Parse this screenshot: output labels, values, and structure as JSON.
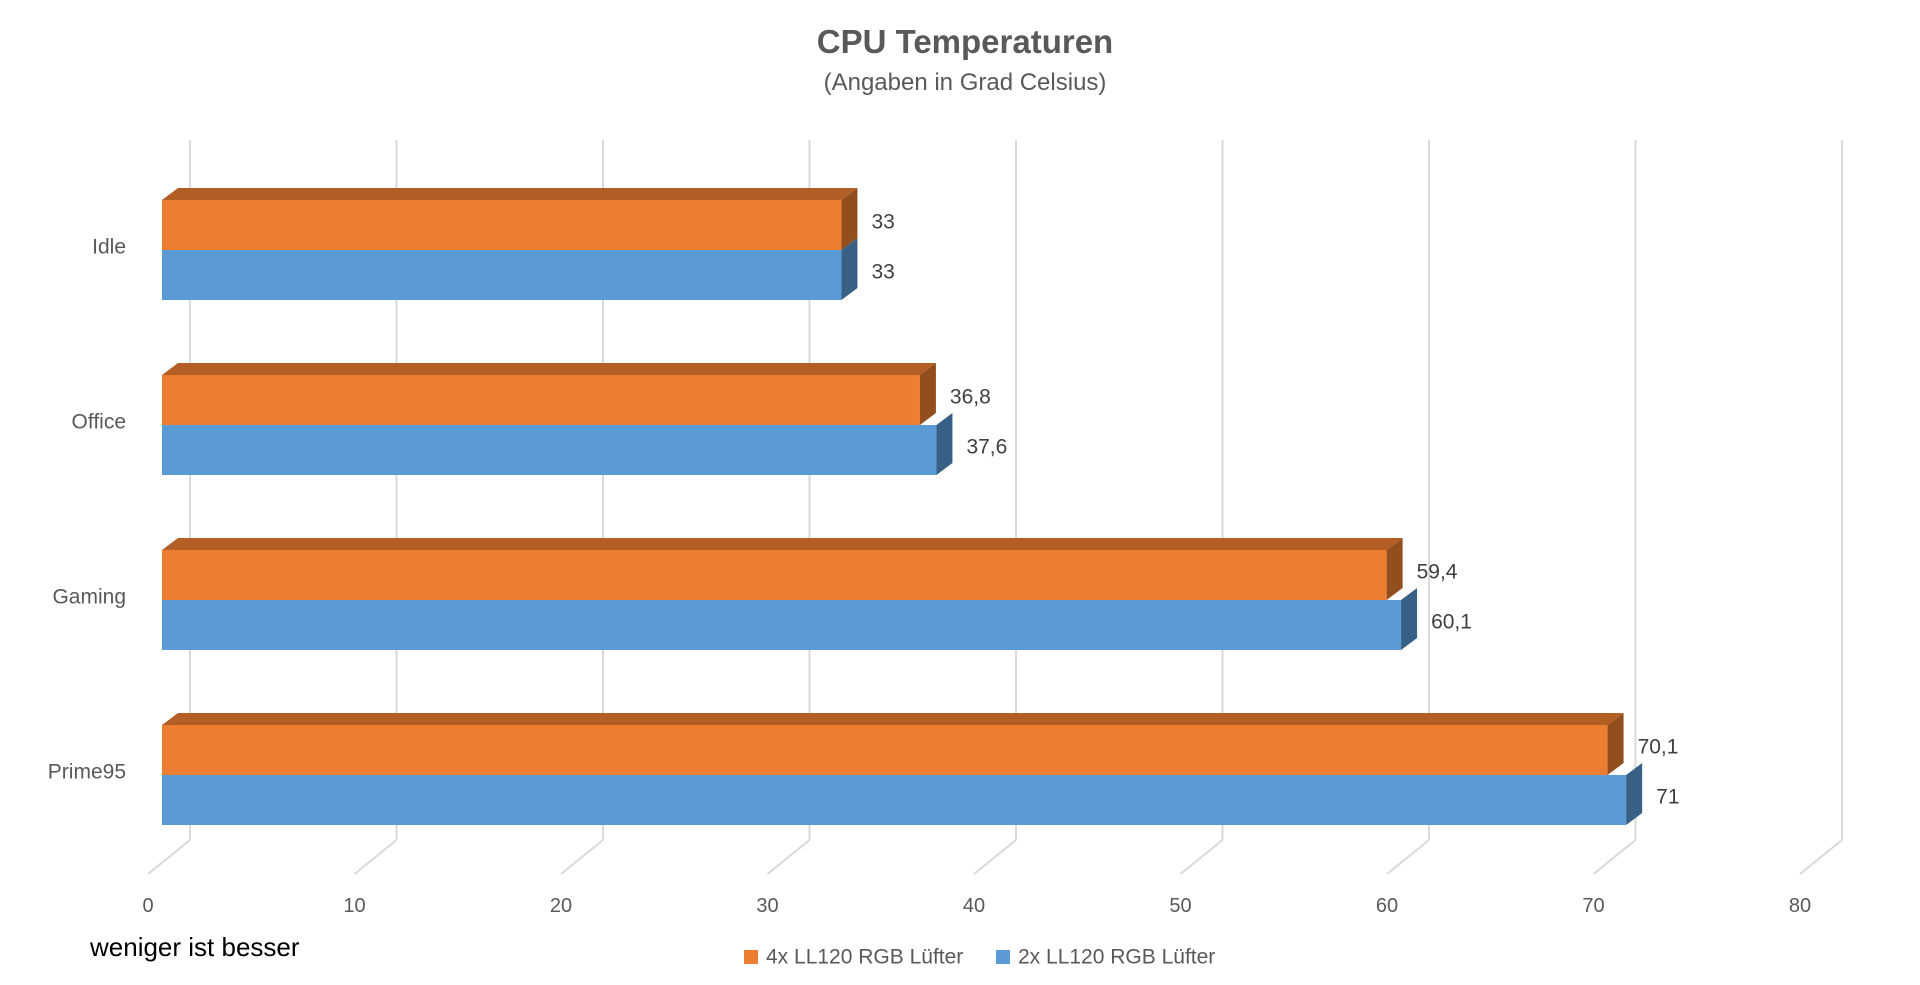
{
  "chart_data": {
    "type": "bar",
    "orientation": "horizontal",
    "style": "3d",
    "title": "CPU Temperaturen",
    "subtitle": "(Angaben in Grad Celsius)",
    "categories": [
      "Idle",
      "Office",
      "Gaming",
      "Prime95"
    ],
    "series": [
      {
        "name": "4x LL120 RGB Lüfter",
        "color": "#ED7D31",
        "values": [
          33,
          36.8,
          59.4,
          70.1
        ],
        "labels": [
          "33",
          "36,8",
          "59,4",
          "70,1"
        ]
      },
      {
        "name": "2x LL120 RGB Lüfter",
        "color": "#5B9BD5",
        "values": [
          33,
          37.6,
          60.1,
          71
        ],
        "labels": [
          "33",
          "37,6",
          "60,1",
          "71"
        ]
      }
    ],
    "xlim": [
      0,
      80
    ],
    "xticks": [
      0,
      10,
      20,
      30,
      40,
      50,
      60,
      70,
      80
    ],
    "xtick_labels": [
      "0",
      "10",
      "20",
      "30",
      "40",
      "50",
      "60",
      "70",
      "80"
    ],
    "grid": true,
    "legend_position": "bottom"
  },
  "note": "weniger ist besser"
}
